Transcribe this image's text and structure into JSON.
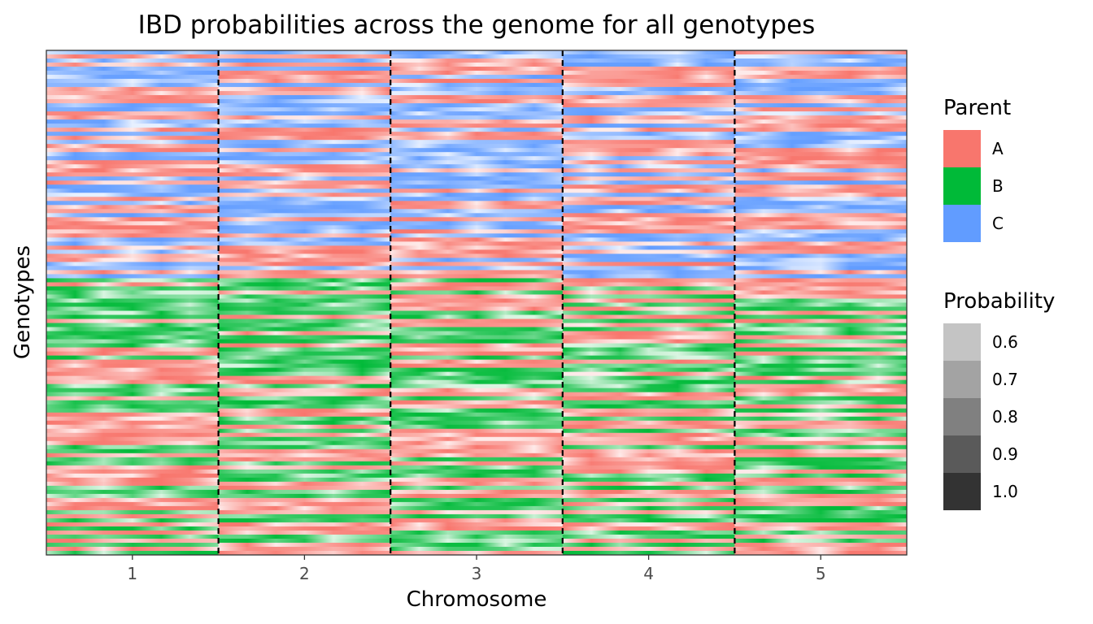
{
  "chart_data": {
    "type": "heatmap",
    "title": "IBD probabilities across the genome for all genotypes",
    "xlabel": "Chromosome",
    "ylabel": "Genotypes",
    "categories": [
      "1",
      "2",
      "3",
      "4",
      "5"
    ],
    "chromosome_boundaries": [
      1.5,
      2.5,
      3.5,
      4.5
    ],
    "xlim": [
      0.5,
      5.5
    ],
    "grid": false,
    "y_tick_labels": false,
    "parent_legend": {
      "title": "Parent",
      "entries": [
        {
          "label": "A",
          "color": "#F8766D"
        },
        {
          "label": "B",
          "color": "#00BA38"
        },
        {
          "label": "C",
          "color": "#619CFF"
        }
      ]
    },
    "probability_legend": {
      "title": "Probability",
      "entries": [
        {
          "label": "0.6",
          "color": "#C4C4C4"
        },
        {
          "label": "0.7",
          "color": "#A3A3A3"
        },
        {
          "label": "0.8",
          "color": "#808080"
        },
        {
          "label": "0.9",
          "color": "#5A5A5A"
        },
        {
          "label": "1.0",
          "color": "#333333"
        }
      ]
    },
    "groups": [
      {
        "parents": [
          "A",
          "C"
        ],
        "share": 0.45
      },
      {
        "parents": [
          "A",
          "B"
        ],
        "share": 0.55
      }
    ],
    "probability_range": [
      0.55,
      1.0
    ],
    "legend_position": "right"
  }
}
